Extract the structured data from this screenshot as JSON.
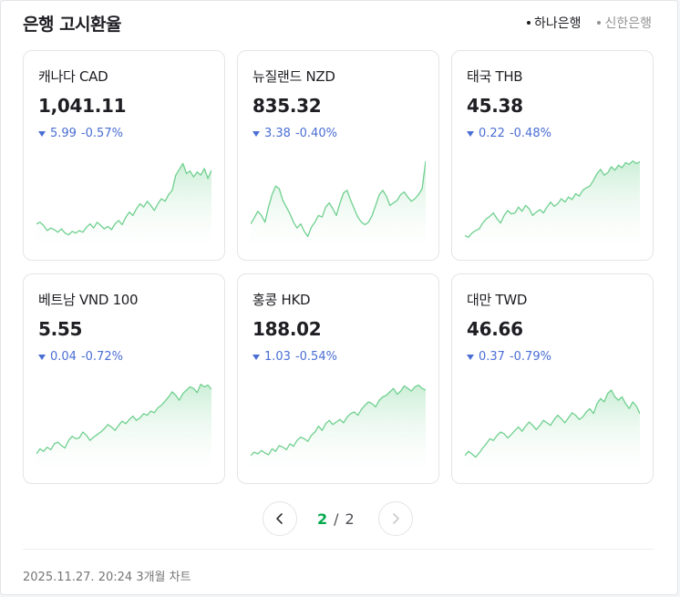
{
  "header": {
    "title": "은행 고시환율",
    "banks": [
      {
        "label": "하나은행",
        "active": true
      },
      {
        "label": "신한은행",
        "active": false
      }
    ]
  },
  "cards": [
    {
      "name": "캐나다 CAD",
      "rate": "1,041.11",
      "change": "5.99",
      "percent": "-0.57%",
      "direction": "down",
      "trend": [
        0.2,
        0.22,
        0.18,
        0.12,
        0.15,
        0.13,
        0.1,
        0.14,
        0.09,
        0.07,
        0.11,
        0.09,
        0.12,
        0.1,
        0.16,
        0.2,
        0.15,
        0.22,
        0.18,
        0.14,
        0.17,
        0.13,
        0.2,
        0.24,
        0.19,
        0.28,
        0.34,
        0.3,
        0.38,
        0.44,
        0.4,
        0.47,
        0.42,
        0.36,
        0.44,
        0.5,
        0.47,
        0.55,
        0.6,
        0.78,
        0.85,
        0.92,
        0.8,
        0.83,
        0.76,
        0.82,
        0.78,
        0.86,
        0.74,
        0.84
      ]
    },
    {
      "name": "뉴질랜드 NZD",
      "rate": "835.32",
      "change": "3.38",
      "percent": "-0.40%",
      "direction": "down",
      "trend": [
        0.2,
        0.27,
        0.35,
        0.3,
        0.22,
        0.4,
        0.55,
        0.65,
        0.62,
        0.48,
        0.4,
        0.32,
        0.22,
        0.15,
        0.2,
        0.11,
        0.05,
        0.16,
        0.22,
        0.3,
        0.28,
        0.4,
        0.45,
        0.38,
        0.3,
        0.45,
        0.57,
        0.6,
        0.48,
        0.38,
        0.28,
        0.22,
        0.19,
        0.22,
        0.3,
        0.42,
        0.55,
        0.6,
        0.53,
        0.42,
        0.45,
        0.48,
        0.55,
        0.58,
        0.52,
        0.47,
        0.5,
        0.55,
        0.62,
        0.95
      ]
    },
    {
      "name": "태국 THB",
      "rate": "45.38",
      "change": "0.22",
      "percent": "-0.48%",
      "direction": "down",
      "trend": [
        0.06,
        0.04,
        0.09,
        0.12,
        0.14,
        0.21,
        0.26,
        0.29,
        0.33,
        0.26,
        0.21,
        0.3,
        0.36,
        0.32,
        0.33,
        0.4,
        0.35,
        0.42,
        0.38,
        0.3,
        0.34,
        0.37,
        0.33,
        0.4,
        0.46,
        0.41,
        0.44,
        0.5,
        0.46,
        0.52,
        0.49,
        0.56,
        0.53,
        0.6,
        0.63,
        0.65,
        0.72,
        0.8,
        0.85,
        0.78,
        0.81,
        0.88,
        0.84,
        0.9,
        0.87,
        0.93,
        0.91,
        0.95,
        0.92,
        0.94
      ]
    },
    {
      "name": "베트남 VND 100",
      "rate": "5.55",
      "change": "0.04",
      "percent": "-0.72%",
      "direction": "down",
      "trend": [
        0.12,
        0.18,
        0.15,
        0.2,
        0.17,
        0.24,
        0.26,
        0.22,
        0.19,
        0.28,
        0.33,
        0.3,
        0.31,
        0.38,
        0.34,
        0.28,
        0.32,
        0.35,
        0.38,
        0.42,
        0.47,
        0.44,
        0.4,
        0.46,
        0.51,
        0.48,
        0.53,
        0.57,
        0.52,
        0.55,
        0.6,
        0.58,
        0.63,
        0.61,
        0.67,
        0.7,
        0.75,
        0.8,
        0.86,
        0.82,
        0.76,
        0.84,
        0.88,
        0.92,
        0.9,
        0.85,
        0.95,
        0.92,
        0.94,
        0.89
      ]
    },
    {
      "name": "홍콩 HKD",
      "rate": "188.02",
      "change": "1.03",
      "percent": "-0.54%",
      "direction": "down",
      "trend": [
        0.1,
        0.14,
        0.12,
        0.16,
        0.13,
        0.11,
        0.18,
        0.15,
        0.22,
        0.2,
        0.17,
        0.24,
        0.21,
        0.28,
        0.32,
        0.3,
        0.27,
        0.34,
        0.38,
        0.45,
        0.4,
        0.48,
        0.52,
        0.47,
        0.5,
        0.53,
        0.49,
        0.56,
        0.6,
        0.62,
        0.58,
        0.65,
        0.7,
        0.74,
        0.72,
        0.68,
        0.76,
        0.8,
        0.82,
        0.86,
        0.9,
        0.83,
        0.87,
        0.93,
        0.9,
        0.87,
        0.92,
        0.94,
        0.9,
        0.88
      ]
    },
    {
      "name": "대만 TWD",
      "rate": "46.66",
      "change": "0.37",
      "percent": "-0.79%",
      "direction": "down",
      "trend": [
        0.1,
        0.15,
        0.12,
        0.08,
        0.13,
        0.19,
        0.24,
        0.3,
        0.28,
        0.34,
        0.38,
        0.36,
        0.31,
        0.35,
        0.4,
        0.44,
        0.39,
        0.45,
        0.5,
        0.46,
        0.41,
        0.46,
        0.52,
        0.49,
        0.46,
        0.53,
        0.58,
        0.54,
        0.49,
        0.55,
        0.61,
        0.58,
        0.53,
        0.56,
        0.62,
        0.66,
        0.6,
        0.72,
        0.78,
        0.74,
        0.84,
        0.88,
        0.8,
        0.76,
        0.8,
        0.72,
        0.66,
        0.74,
        0.69,
        0.6
      ]
    }
  ],
  "pagination": {
    "current": "2",
    "separator": "/",
    "total": "2"
  },
  "footer": {
    "timestamp": "2025.11.27. 20:24",
    "range_label": "3개월 차트"
  },
  "colors": {
    "accent_green": "#03a94d",
    "down_blue": "#4a6ed4",
    "spark_line": "#6fd08f",
    "spark_fill": "#e8f7ec"
  },
  "icons": {
    "prev": "chevron-left-icon",
    "next": "chevron-right-icon",
    "down": "triangle-down-icon"
  }
}
